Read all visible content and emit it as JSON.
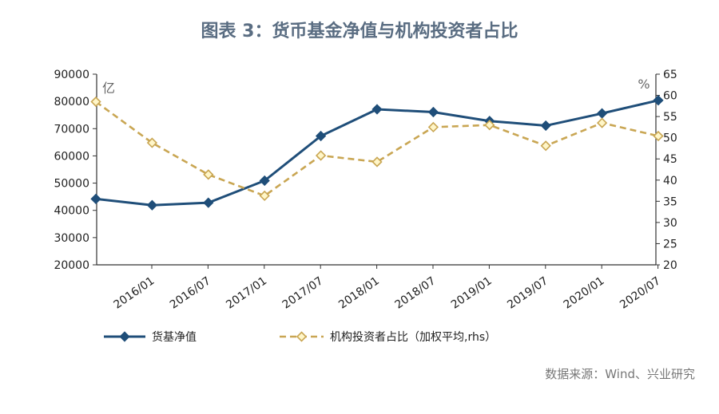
{
  "chart_data": {
    "type": "line",
    "title": "图表 3：货币基金净值与机构投资者占比",
    "left_unit": "亿",
    "right_unit": "%",
    "left_axis": {
      "min": 20000,
      "max": 90000,
      "step": 10000,
      "ticks": [
        "90000",
        "80000",
        "70000",
        "60000",
        "50000",
        "40000",
        "30000",
        "20000"
      ]
    },
    "right_axis": {
      "min": 20,
      "max": 65,
      "step": 5,
      "ticks": [
        "65",
        "60",
        "55",
        "50",
        "45",
        "40",
        "35",
        "30",
        "25",
        "20"
      ]
    },
    "x_ticks": [
      "2016/01",
      "2016/07",
      "2017/01",
      "2017/07",
      "2018/01",
      "2018/07",
      "2019/01",
      "2019/07",
      "2020/01",
      "2020/07"
    ],
    "series": [
      {
        "name": "货基净值",
        "axis": "left",
        "color": "#1f4e79",
        "marker": "diamond-filled",
        "style": "solid",
        "x": [
          "2015/12",
          "2016/06",
          "2016/12",
          "2017/06",
          "2017/12",
          "2018/06",
          "2018/12",
          "2019/06",
          "2019/12",
          "2020/06",
          "2020/12"
        ],
        "values": [
          44200,
          41900,
          42800,
          50900,
          67300,
          77100,
          76100,
          72800,
          71100,
          75600,
          80400
        ]
      },
      {
        "name": "机构投资者占比（加权平均,rhs）",
        "axis": "right",
        "color": "#c9a653",
        "marker": "diamond-hollow",
        "style": "dashed",
        "x": [
          "2015/12",
          "2016/06",
          "2016/12",
          "2017/06",
          "2017/12",
          "2018/06",
          "2018/12",
          "2019/06",
          "2019/12",
          "2020/06",
          "2020/12"
        ],
        "values": [
          58.5,
          48.8,
          41.3,
          36.3,
          45.8,
          44.3,
          52.5,
          53.0,
          48.1,
          53.5,
          50.4
        ]
      }
    ]
  },
  "source": "数据来源：Wind、兴业研究"
}
